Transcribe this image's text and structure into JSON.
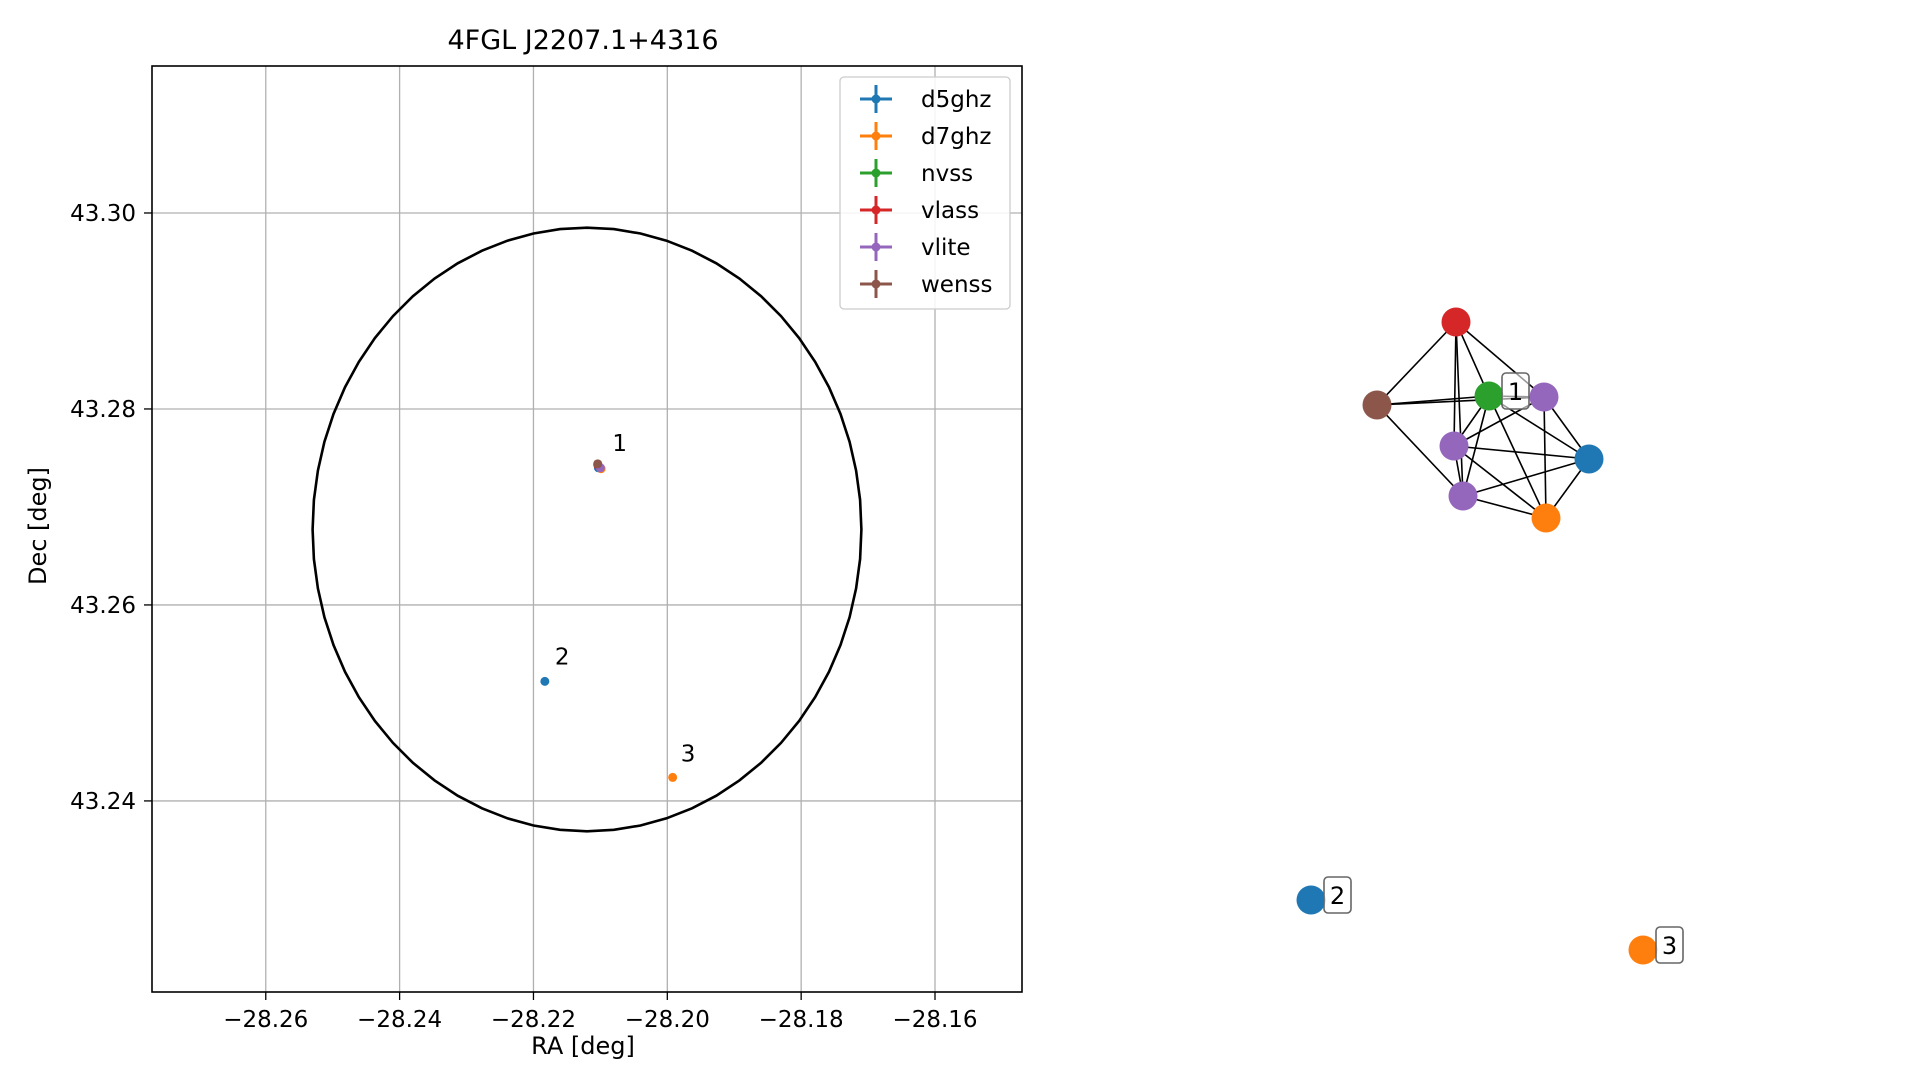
{
  "chart_data": [
    {
      "type": "scatter",
      "title": "4FGL J2207.1+4316",
      "xlabel": "RA [deg]",
      "ylabel": "Dec [deg]",
      "xlim": [
        -28.277,
        -28.147
      ],
      "ylim": [
        43.2205,
        43.315
      ],
      "grid": true,
      "xticks": [
        -28.26,
        -28.24,
        -28.22,
        -28.2,
        -28.18,
        -28.16
      ],
      "xtick_labels": [
        "−28.26",
        "−28.24",
        "−28.22",
        "−28.20",
        "−28.18",
        "−28.16"
      ],
      "yticks": [
        43.24,
        43.26,
        43.28,
        43.3
      ],
      "ytick_labels": [
        "43.24",
        "43.26",
        "43.28",
        "43.30"
      ],
      "legend_position": "top-right",
      "series": [
        {
          "name": "d5ghz",
          "color": "#1f77b4",
          "points": [
            {
              "x": -28.2103,
              "y": 43.274
            },
            {
              "x": -28.2183,
              "y": 43.2522
            }
          ]
        },
        {
          "name": "d7ghz",
          "color": "#ff7f0e",
          "points": [
            {
              "x": -28.2099,
              "y": 43.2739
            },
            {
              "x": -28.1992,
              "y": 43.2424
            }
          ]
        },
        {
          "name": "nvss",
          "color": "#2ca02c",
          "points": [
            {
              "x": -28.2104,
              "y": 43.2743
            }
          ]
        },
        {
          "name": "vlass",
          "color": "#d62728",
          "points": [
            {
              "x": -28.2103,
              "y": 43.2742
            }
          ]
        },
        {
          "name": "vlite",
          "color": "#9467bd",
          "points": [
            {
              "x": -28.21,
              "y": 43.274
            }
          ]
        },
        {
          "name": "wenss",
          "color": "#8c564b",
          "points": [
            {
              "x": -28.2104,
              "y": 43.2744
            }
          ]
        }
      ],
      "annotations": [
        {
          "text": "1",
          "x": -28.2082,
          "y": 43.2757
        },
        {
          "text": "2",
          "x": -28.2168,
          "y": 43.2539
        },
        {
          "text": "3",
          "x": -28.198,
          "y": 43.244
        }
      ],
      "error_region": {
        "shape": "ellipse",
        "center": [
          -28.212,
          43.2677
        ],
        "ra_semi_axis": 0.041,
        "dec_semi_axis": 0.0308,
        "color": "#000000"
      }
    },
    {
      "type": "network",
      "nodes": [
        {
          "id": "red",
          "color": "#d62728"
        },
        {
          "id": "green",
          "color": "#2ca02c"
        },
        {
          "id": "purpleA",
          "color": "#9467bd"
        },
        {
          "id": "brown",
          "color": "#8c564b"
        },
        {
          "id": "purpleB",
          "color": "#9467bd"
        },
        {
          "id": "blue1",
          "color": "#1f77b4"
        },
        {
          "id": "purpleC",
          "color": "#9467bd"
        },
        {
          "id": "orange1",
          "color": "#ff7f0e"
        },
        {
          "id": "blue2",
          "color": "#1f77b4"
        },
        {
          "id": "orange2",
          "color": "#ff7f0e"
        }
      ],
      "edges": [
        [
          "red",
          "green"
        ],
        [
          "red",
          "purpleA"
        ],
        [
          "red",
          "purpleB"
        ],
        [
          "red",
          "purpleC"
        ],
        [
          "red",
          "brown"
        ],
        [
          "green",
          "brown"
        ],
        [
          "green",
          "purpleA"
        ],
        [
          "green",
          "purpleB"
        ],
        [
          "green",
          "purpleC"
        ],
        [
          "green",
          "blue1"
        ],
        [
          "green",
          "orange1"
        ],
        [
          "brown",
          "purpleA"
        ],
        [
          "brown",
          "purpleC"
        ],
        [
          "purpleA",
          "purpleB"
        ],
        [
          "purpleA",
          "blue1"
        ],
        [
          "purpleA",
          "orange1"
        ],
        [
          "purpleB",
          "purpleC"
        ],
        [
          "purpleB",
          "blue1"
        ],
        [
          "purpleB",
          "orange1"
        ],
        [
          "purpleC",
          "orange1"
        ],
        [
          "purpleC",
          "blue1"
        ],
        [
          "blue1",
          "orange1"
        ]
      ],
      "labels": [
        {
          "text": "1",
          "node": "green"
        },
        {
          "text": "2",
          "node": "blue2"
        },
        {
          "text": "3",
          "node": "orange2"
        }
      ]
    }
  ]
}
